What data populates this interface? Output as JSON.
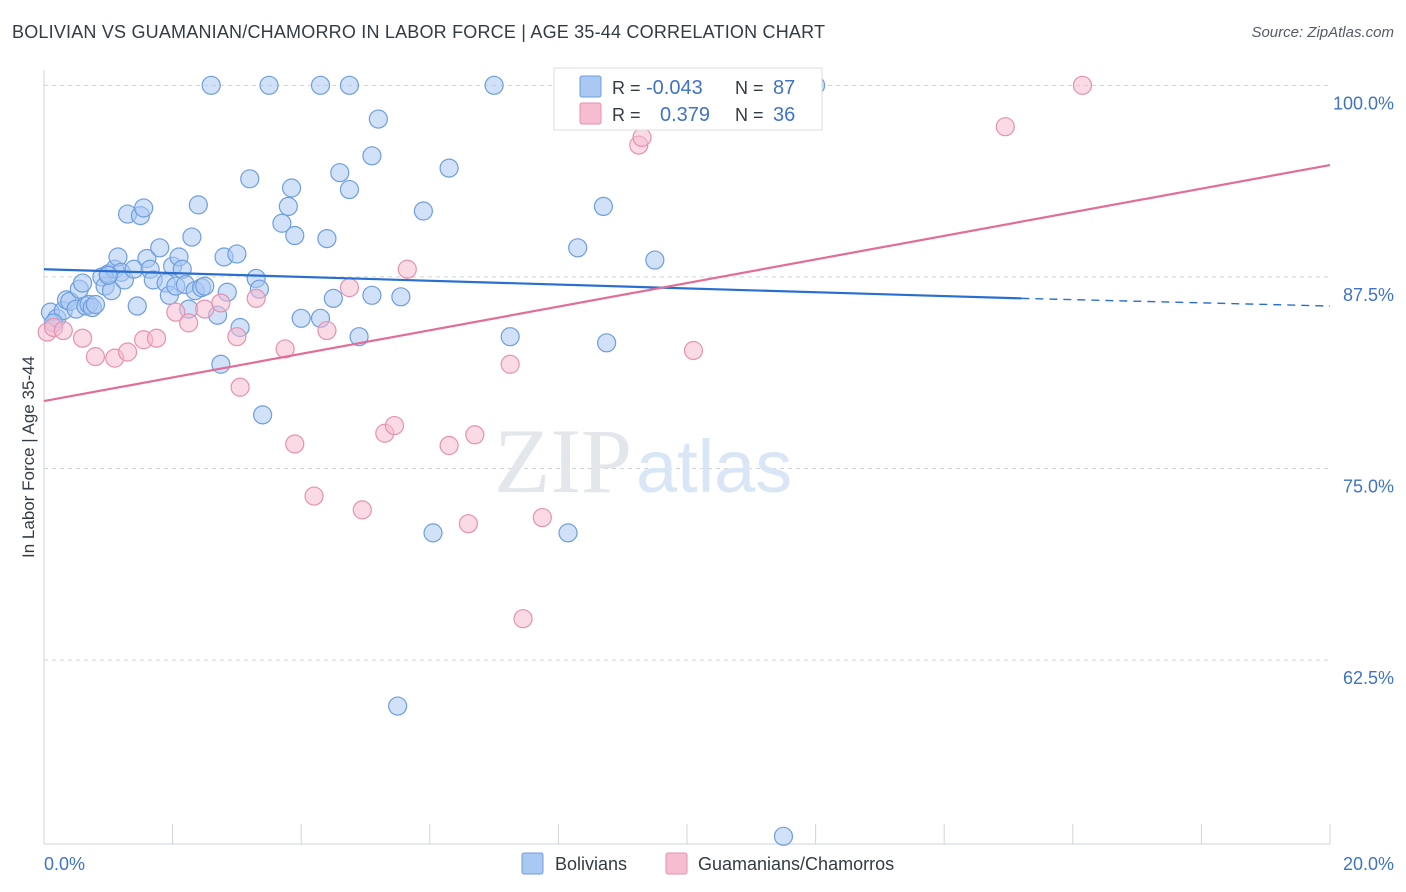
{
  "header": {
    "title": "BOLIVIAN VS GUAMANIAN/CHAMORRO IN LABOR FORCE | AGE 35-44 CORRELATION CHART",
    "source": "Source: ZipAtlas.com"
  },
  "watermark": {
    "part1": "ZIP",
    "part2": "atlas"
  },
  "colors": {
    "blue_fill": "#a9c8f2",
    "blue_stroke": "#6f9ede",
    "blue_line": "#2a6fcf",
    "pink_fill": "#f6bcd0",
    "pink_stroke": "#e592b0",
    "pink_line": "#e06e98",
    "grid": "#cfd4da",
    "label": "#3f73c8"
  },
  "legend": {
    "rows": [
      {
        "r_label": "R =",
        "r_value": "-0.043",
        "n_label": "N =",
        "n_value": "87"
      },
      {
        "r_label": "R =",
        "r_value": "0.379",
        "n_label": "N =",
        "n_value": "36"
      }
    ]
  },
  "bottom_legend": [
    "Bolivians",
    "Guamanians/Chamorros"
  ],
  "chart_data": {
    "type": "scatter",
    "ylabel": "In Labor Force | Age 35-44",
    "xlim": [
      0,
      20
    ],
    "ylim": [
      50.5,
      101
    ],
    "x_tick_labels": [
      "0.0%",
      "20.0%"
    ],
    "y_ticks": [
      100,
      87.5,
      75,
      62.5
    ],
    "y_tick_labels": [
      "100.0%",
      "87.5%",
      "75.0%",
      "62.5%"
    ],
    "grid": "horizontal dashed",
    "series": [
      {
        "name": "Bolivians",
        "trend": {
          "x0": 0,
          "y0": 88.0,
          "x1": 15.2,
          "y1": 86.1,
          "dash_to_x": 20,
          "dash_to_y": 85.6
        },
        "points": [
          [
            0.1,
            85.2
          ],
          [
            0.2,
            84.8
          ],
          [
            0.3,
            85.3
          ],
          [
            0.35,
            86.0
          ],
          [
            0.4,
            85.9
          ],
          [
            0.5,
            85.4
          ],
          [
            0.55,
            86.7
          ],
          [
            0.6,
            87.1
          ],
          [
            0.65,
            85.6
          ],
          [
            0.7,
            85.7
          ],
          [
            0.75,
            85.5
          ],
          [
            0.8,
            85.7
          ],
          [
            0.9,
            87.5
          ],
          [
            0.95,
            86.9
          ],
          [
            1.0,
            87.7
          ],
          [
            1.05,
            86.6
          ],
          [
            1.1,
            88.0
          ],
          [
            1.15,
            88.8
          ],
          [
            1.2,
            87.8
          ],
          [
            1.25,
            87.3
          ],
          [
            1.3,
            91.6
          ],
          [
            1.4,
            88.0
          ],
          [
            1.45,
            85.6
          ],
          [
            1.5,
            91.5
          ],
          [
            1.55,
            92.0
          ],
          [
            1.6,
            88.7
          ],
          [
            1.65,
            88.0
          ],
          [
            1.7,
            87.3
          ],
          [
            1.8,
            89.4
          ],
          [
            1.9,
            87.1
          ],
          [
            1.95,
            86.3
          ],
          [
            2.0,
            88.2
          ],
          [
            2.05,
            86.9
          ],
          [
            2.1,
            88.8
          ],
          [
            2.15,
            88.0
          ],
          [
            2.2,
            87.0
          ],
          [
            2.25,
            85.4
          ],
          [
            2.3,
            90.1
          ],
          [
            2.35,
            86.6
          ],
          [
            2.4,
            92.2
          ],
          [
            2.45,
            86.8
          ],
          [
            2.5,
            86.9
          ],
          [
            2.6,
            100.0
          ],
          [
            2.7,
            85.0
          ],
          [
            2.75,
            81.8
          ],
          [
            2.8,
            88.8
          ],
          [
            2.85,
            86.5
          ],
          [
            3.0,
            89.0
          ],
          [
            3.05,
            84.2
          ],
          [
            3.2,
            93.9
          ],
          [
            3.3,
            87.4
          ],
          [
            3.35,
            86.7
          ],
          [
            3.4,
            78.5
          ],
          [
            3.5,
            100.0
          ],
          [
            3.7,
            91.0
          ],
          [
            3.8,
            92.1
          ],
          [
            3.85,
            93.3
          ],
          [
            3.9,
            90.2
          ],
          [
            4.0,
            84.8
          ],
          [
            4.3,
            100.0
          ],
          [
            4.3,
            84.8
          ],
          [
            4.4,
            90.0
          ],
          [
            4.5,
            86.1
          ],
          [
            4.6,
            94.3
          ],
          [
            4.75,
            93.2
          ],
          [
            4.75,
            100.0
          ],
          [
            4.9,
            83.6
          ],
          [
            5.1,
            95.4
          ],
          [
            5.1,
            86.3
          ],
          [
            5.2,
            97.8
          ],
          [
            5.55,
            86.2
          ],
          [
            5.9,
            91.8
          ],
          [
            6.05,
            70.8
          ],
          [
            6.3,
            94.6
          ],
          [
            7.0,
            100.0
          ],
          [
            7.25,
            83.6
          ],
          [
            8.15,
            70.8
          ],
          [
            8.3,
            89.4
          ],
          [
            8.7,
            92.1
          ],
          [
            8.75,
            83.2
          ],
          [
            9.5,
            88.6
          ],
          [
            11.1,
            100.0
          ],
          [
            12.0,
            100.0
          ],
          [
            5.5,
            59.5
          ],
          [
            11.5,
            51.0
          ],
          [
            0.15,
            84.5
          ],
          [
            1.0,
            87.6
          ]
        ]
      },
      {
        "name": "Guamanians/Chamorros",
        "trend": {
          "x0": 0,
          "y0": 79.4,
          "x1": 20,
          "y1": 94.8
        },
        "points": [
          [
            0.05,
            83.9
          ],
          [
            0.15,
            84.2
          ],
          [
            0.3,
            84.0
          ],
          [
            0.6,
            83.5
          ],
          [
            0.8,
            82.3
          ],
          [
            1.1,
            82.2
          ],
          [
            1.3,
            82.6
          ],
          [
            1.55,
            83.4
          ],
          [
            1.75,
            83.5
          ],
          [
            2.05,
            85.2
          ],
          [
            2.25,
            84.5
          ],
          [
            2.5,
            85.4
          ],
          [
            2.75,
            85.8
          ],
          [
            3.0,
            83.6
          ],
          [
            3.05,
            80.3
          ],
          [
            3.3,
            86.1
          ],
          [
            3.75,
            82.8
          ],
          [
            3.9,
            76.6
          ],
          [
            4.2,
            73.2
          ],
          [
            4.4,
            84.0
          ],
          [
            4.75,
            86.8
          ],
          [
            4.95,
            72.3
          ],
          [
            5.3,
            77.3
          ],
          [
            5.45,
            77.8
          ],
          [
            5.65,
            88.0
          ],
          [
            6.3,
            76.5
          ],
          [
            6.6,
            71.4
          ],
          [
            6.7,
            77.2
          ],
          [
            7.25,
            81.8
          ],
          [
            7.45,
            65.2
          ],
          [
            7.75,
            71.8
          ],
          [
            9.25,
            96.1
          ],
          [
            9.3,
            96.6
          ],
          [
            10.1,
            82.7
          ],
          [
            14.95,
            97.3
          ],
          [
            16.15,
            100.0
          ]
        ]
      }
    ]
  }
}
